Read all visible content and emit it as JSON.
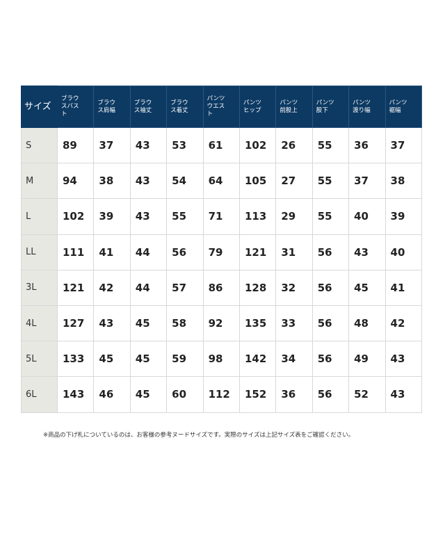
{
  "table": {
    "header": [
      "サイズ",
      "ブラウスバスト",
      "ブラウス肩幅",
      "ブラウス袖丈",
      "ブラウス着丈",
      "パンツウエスト",
      "パンツヒップ",
      "パンツ前股上",
      "パンツ股下",
      "パンツ渡り幅",
      "パンツ裾幅"
    ],
    "rows": [
      [
        "S",
        89,
        37,
        43,
        53,
        61,
        102,
        26,
        55,
        36,
        37
      ],
      [
        "M",
        94,
        38,
        43,
        54,
        64,
        105,
        27,
        55,
        37,
        38
      ],
      [
        "L",
        102,
        39,
        43,
        55,
        71,
        113,
        29,
        55,
        40,
        39
      ],
      [
        "LL",
        111,
        41,
        44,
        56,
        79,
        121,
        31,
        56,
        43,
        40
      ],
      [
        "3L",
        121,
        42,
        44,
        57,
        86,
        128,
        32,
        56,
        45,
        41
      ],
      [
        "4L",
        127,
        43,
        45,
        58,
        92,
        135,
        33,
        56,
        48,
        42
      ],
      [
        "5L",
        133,
        45,
        45,
        59,
        98,
        142,
        34,
        56,
        49,
        43
      ],
      [
        "6L",
        143,
        46,
        45,
        60,
        112,
        152,
        36,
        56,
        52,
        43
      ]
    ]
  },
  "footnote": "※商品の下げ札についているのは、お客様の参考ヌードサイズです。実際のサイズは上記サイズ表をご確認ください。"
}
